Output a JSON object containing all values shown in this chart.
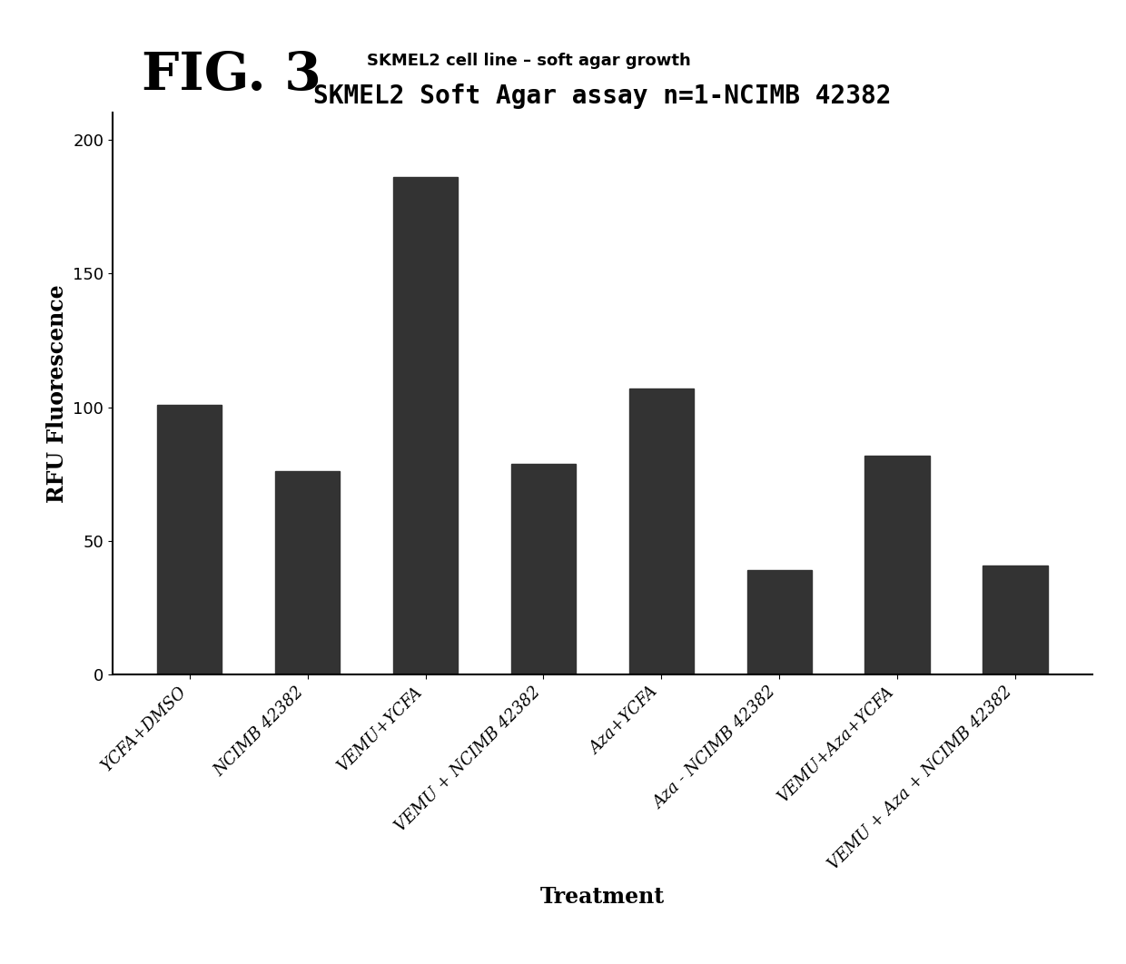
{
  "fig_label": "FIG. 3",
  "fig_label_fontsize": 42,
  "fig_sublabel": "SKMEL2 cell line – soft agar growth",
  "fig_sublabel_fontsize": 13,
  "chart_title": "SKMEL2 Soft Agar assay n=1-NCIMB 42382",
  "chart_title_fontsize": 20,
  "categories": [
    "YCFA+DMSO",
    "NCIMB 42382",
    "VEMU+YCFA",
    "VEMU + NCIMB 42382",
    "Aza+YCFA",
    "Aza - NCIMB 42382",
    "VEMU+Aza+YCFA",
    "VEMU + Aza + NCIMB 42382"
  ],
  "values": [
    101,
    76,
    186,
    79,
    107,
    39,
    82,
    41
  ],
  "bar_color": "#333333",
  "ylabel": "RFU Fluorescence",
  "xlabel": "Treatment",
  "ylim": [
    0,
    210
  ],
  "yticks": [
    0,
    50,
    100,
    150,
    200
  ],
  "bar_width": 0.55,
  "tick_label_fontsize": 13,
  "axis_label_fontsize": 17,
  "background_color": "#ffffff"
}
